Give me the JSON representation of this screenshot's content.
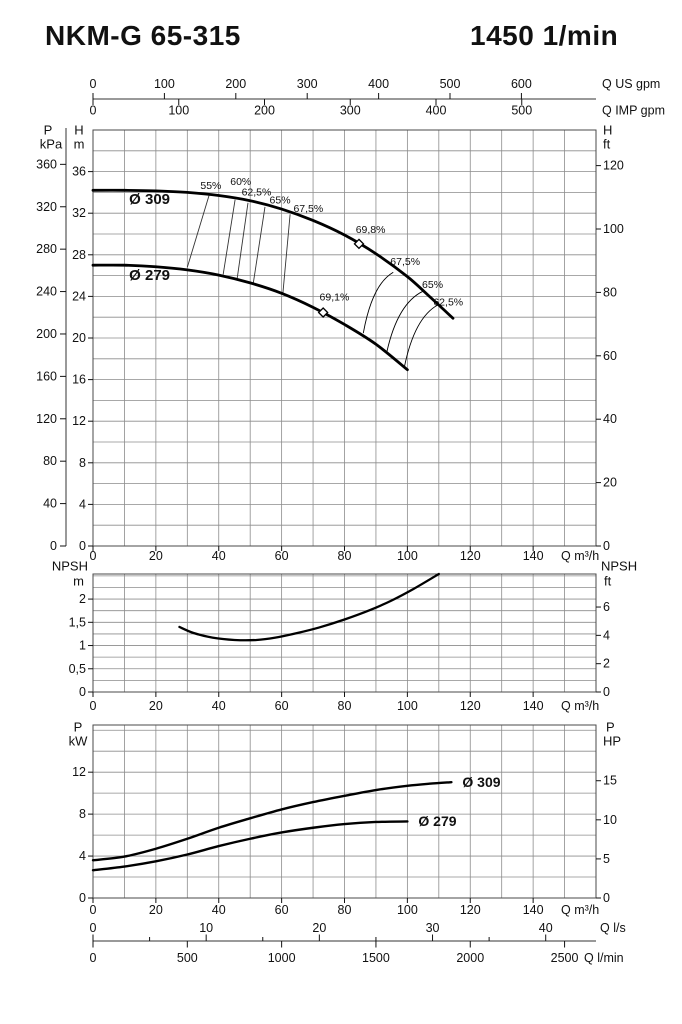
{
  "header": {
    "model": "NKM-G 65-315",
    "speed": "1450 1/min"
  },
  "top_axes": {
    "us_gpm": {
      "unit": "Q US gpm",
      "ticks": [
        0,
        100,
        200,
        300,
        400,
        500,
        600
      ],
      "m3h_per_unit": 0.22712
    },
    "imp_gpm": {
      "unit": "Q IMP gpm",
      "ticks": [
        0,
        100,
        200,
        300,
        400,
        500
      ],
      "m3h_per_unit": 0.27276
    }
  },
  "bottom_axes": {
    "ls": {
      "unit": "Q l/s",
      "ticks": [
        0,
        10,
        20,
        30,
        40
      ],
      "minor_ticks": [
        5,
        15,
        25,
        35
      ],
      "m3h_per_unit": 3.6
    },
    "lmin": {
      "unit": "Q l/min",
      "ticks": [
        0,
        500,
        1000,
        1500,
        2000,
        2500
      ],
      "m3h_per_unit": 0.06
    }
  },
  "flow_axis": {
    "unit": "Q m³/h",
    "ticks": [
      0,
      20,
      40,
      60,
      80,
      100,
      120,
      140
    ],
    "max": 160,
    "grid_step": 10
  },
  "chart_data": [
    {
      "type": "line",
      "name": "head-flow-curves",
      "x_unit": "Q m³/h",
      "xlim": [
        0,
        160
      ],
      "y_left": {
        "label": "H",
        "unit": "m",
        "ticks": [
          0,
          4,
          8,
          12,
          16,
          20,
          24,
          28,
          32,
          36
        ],
        "lim": [
          0,
          40
        ],
        "grid_step": 2
      },
      "y_left_outer": {
        "label": "P",
        "unit": "kPa",
        "ticks": [
          0,
          40,
          80,
          120,
          160,
          200,
          240,
          280,
          320,
          360
        ],
        "kpa_per_m": 9.81
      },
      "y_right": {
        "label": "H",
        "unit": "ft",
        "ticks": [
          0,
          20,
          40,
          60,
          80,
          100,
          120
        ],
        "m_per_ft": 0.3048
      },
      "series": [
        {
          "name": "Ø 309",
          "label_pos": [
            18,
            33.3
          ],
          "points": [
            [
              0,
              34.2
            ],
            [
              10,
              34.2
            ],
            [
              20,
              34.15
            ],
            [
              30,
              34.0
            ],
            [
              40,
              33.7
            ],
            [
              50,
              33.2
            ],
            [
              60,
              32.4
            ],
            [
              70,
              31.3
            ],
            [
              80,
              29.9
            ],
            [
              90,
              28.1
            ],
            [
              100,
              25.9
            ],
            [
              107,
              24.0
            ],
            [
              114.5,
              21.9
            ]
          ]
        },
        {
          "name": "Ø 279",
          "label_pos": [
            18,
            26.0
          ],
          "points": [
            [
              0,
              27.0
            ],
            [
              10,
              27.0
            ],
            [
              20,
              26.85
            ],
            [
              30,
              26.55
            ],
            [
              40,
              26.05
            ],
            [
              50,
              25.3
            ],
            [
              60,
              24.3
            ],
            [
              70,
              22.95
            ],
            [
              80,
              21.3
            ],
            [
              90,
              19.4
            ],
            [
              100,
              16.95
            ]
          ]
        }
      ],
      "efficiency_lines": [
        {
          "label": "55%",
          "label_pos": [
            37.5,
            34.6
          ],
          "from": [
            37,
            33.8
          ],
          "to": [
            30,
            26.8
          ],
          "curved": false
        },
        {
          "label": "60%",
          "label_pos": [
            47,
            35.0
          ],
          "from": [
            45.2,
            33.3
          ],
          "to": [
            41.4,
            26.1
          ],
          "curved": false
        },
        {
          "label": "62,5%",
          "label_pos": [
            52,
            34.0
          ],
          "from": [
            49.3,
            33.0
          ],
          "to": [
            45.8,
            25.6
          ],
          "curved": false
        },
        {
          "label": "65%",
          "label_pos": [
            59.5,
            33.2
          ],
          "from": [
            54.7,
            32.6
          ],
          "to": [
            50.9,
            25.1
          ],
          "curved": false
        },
        {
          "label": "67,5%",
          "label_pos": [
            68.5,
            32.4
          ],
          "from": [
            62.7,
            31.9
          ],
          "to": [
            60.4,
            24.3
          ],
          "curved": false
        },
        {
          "label": "67,5%",
          "label_pos": [
            99.3,
            27.3
          ],
          "from": [
            86,
            20.5
          ],
          "to": [
            95.4,
            26.3
          ],
          "curved": true
        },
        {
          "label": "65%",
          "label_pos": [
            108,
            25.1
          ],
          "from": [
            93.5,
            18.7
          ],
          "to": [
            105,
            24.5
          ],
          "curved": true
        },
        {
          "label": "62,5%",
          "label_pos": [
            113,
            23.4
          ],
          "from": [
            99,
            17.15
          ],
          "to": [
            109.8,
            23.2
          ],
          "curved": true
        }
      ],
      "best_efficiency_points": [
        {
          "label": "69,8%",
          "point": [
            84.6,
            29.05
          ],
          "label_pos": [
            88.3,
            30.4
          ]
        },
        {
          "label": "69,1%",
          "point": [
            73.2,
            22.45
          ],
          "label_pos": [
            76.8,
            23.9
          ]
        }
      ]
    },
    {
      "type": "line",
      "name": "npsh-flow-curve",
      "x_unit": "Q m³/h",
      "xlim": [
        0,
        160
      ],
      "y_left": {
        "label": "NPSH",
        "unit": "m",
        "tick_labels": [
          "0",
          "0,5",
          "1",
          "1,5",
          "2"
        ],
        "tick_values": [
          0,
          0.5,
          1,
          1.5,
          2
        ],
        "lim": [
          0,
          2.54
        ],
        "grid_step": 0.25,
        "grid_max": 2.5
      },
      "y_right": {
        "label": "NPSH",
        "unit": "ft",
        "ticks": [
          0,
          2,
          4,
          6
        ],
        "m_per_ft": 0.3048
      },
      "series": [
        {
          "name": "NPSH",
          "points": [
            [
              27.5,
              1.4
            ],
            [
              32,
              1.27
            ],
            [
              38,
              1.17
            ],
            [
              45,
              1.12
            ],
            [
              52,
              1.12
            ],
            [
              58,
              1.17
            ],
            [
              65,
              1.27
            ],
            [
              72,
              1.39
            ],
            [
              80,
              1.56
            ],
            [
              88,
              1.76
            ],
            [
              95,
              1.97
            ],
            [
              102,
              2.22
            ],
            [
              110,
              2.54
            ]
          ]
        }
      ]
    },
    {
      "type": "line",
      "name": "power-flow-curves",
      "x_unit": "Q m³/h",
      "xlim": [
        0,
        160
      ],
      "y_left": {
        "label": "P",
        "unit": "kW",
        "ticks": [
          0,
          4,
          8,
          12
        ],
        "lim": [
          0,
          16.5
        ],
        "grid_step": 2,
        "grid_max": 16
      },
      "y_right": {
        "label": "P",
        "unit": "HP",
        "ticks": [
          0,
          5,
          10,
          15
        ],
        "kw_per_hp": 0.7457
      },
      "series": [
        {
          "name": "Ø 309",
          "label_pos": [
            117.5,
            11.05
          ],
          "points": [
            [
              0,
              3.6
            ],
            [
              10,
              3.95
            ],
            [
              20,
              4.7
            ],
            [
              30,
              5.65
            ],
            [
              40,
              6.7
            ],
            [
              50,
              7.6
            ],
            [
              60,
              8.45
            ],
            [
              70,
              9.15
            ],
            [
              80,
              9.75
            ],
            [
              90,
              10.3
            ],
            [
              100,
              10.7
            ],
            [
              107,
              10.9
            ],
            [
              114,
              11.05
            ]
          ]
        },
        {
          "name": "Ø 279",
          "label_pos": [
            103.5,
            7.35
          ],
          "points": [
            [
              0,
              2.65
            ],
            [
              10,
              3.0
            ],
            [
              20,
              3.5
            ],
            [
              30,
              4.15
            ],
            [
              40,
              4.95
            ],
            [
              50,
              5.65
            ],
            [
              60,
              6.25
            ],
            [
              70,
              6.7
            ],
            [
              80,
              7.05
            ],
            [
              90,
              7.25
            ],
            [
              100,
              7.3
            ]
          ]
        }
      ]
    }
  ]
}
